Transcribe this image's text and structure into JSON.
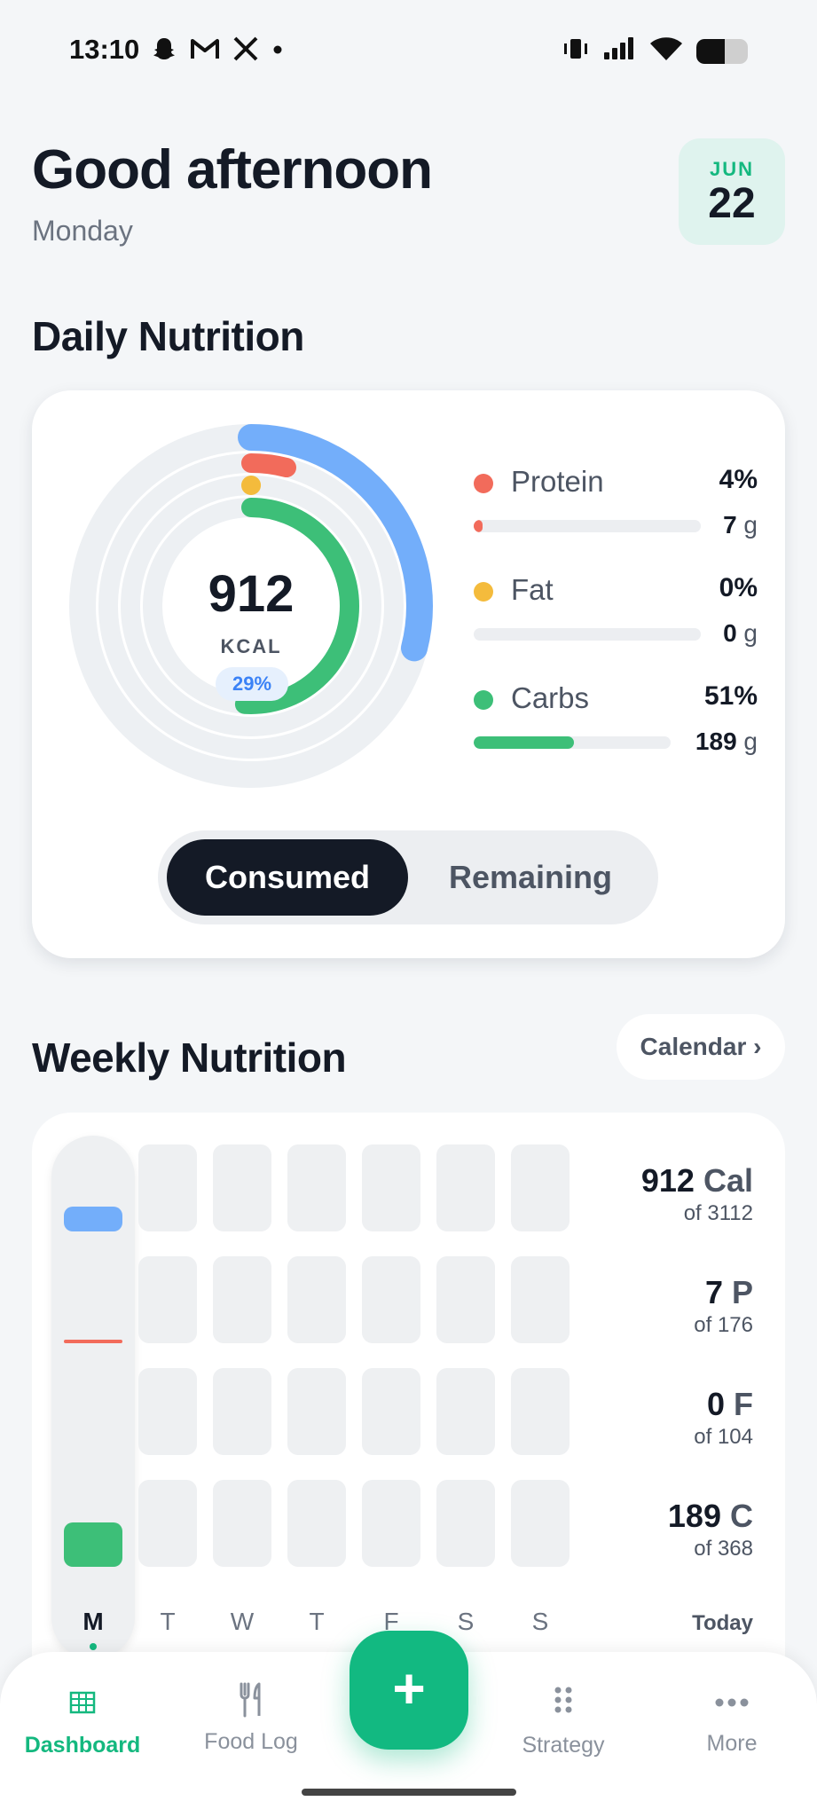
{
  "status_bar": {
    "time": "13:10",
    "notification_icons": [
      "snapchat-icon",
      "gmail-icon",
      "x-icon",
      "dot-icon"
    ],
    "system_icons": [
      "vibrate-icon",
      "signal-icon",
      "wifi-icon",
      "battery-icon"
    ],
    "battery_level": 0.55
  },
  "header": {
    "greeting": "Good afternoon",
    "weekday": "Monday",
    "date_month": "JUN",
    "date_day": "22"
  },
  "daily": {
    "title": "Daily Nutrition",
    "kcal": "912",
    "kcal_label": "KCAL",
    "kcal_percent": "29%",
    "kcal_progress": 0.29,
    "macros": [
      {
        "name": "Protein",
        "percent": "4%",
        "grams": "7",
        "unit": "g",
        "progress": 0.04,
        "color": "#f26b5b"
      },
      {
        "name": "Fat",
        "percent": "0%",
        "grams": "0",
        "unit": "g",
        "progress": 0.0,
        "color": "#f4bb3c"
      },
      {
        "name": "Carbs",
        "percent": "51%",
        "grams": "189",
        "unit": "g",
        "progress": 0.51,
        "color": "#3dbf78"
      }
    ],
    "calorie_color": "#73aefa",
    "toggle": {
      "consumed": "Consumed",
      "remaining": "Remaining",
      "selected": "Consumed"
    }
  },
  "weekly": {
    "title": "Weekly Nutrition",
    "calendar_button": "Calendar ›",
    "days": [
      "M",
      "T",
      "W",
      "T",
      "F",
      "S",
      "S"
    ],
    "active_day": 0,
    "today_label": "Today",
    "stats": [
      {
        "value": "912",
        "unit": "Cal",
        "of": "of 3112"
      },
      {
        "value": "7",
        "unit": "P",
        "of": "of 176"
      },
      {
        "value": "0",
        "unit": "F",
        "of": "of 104"
      },
      {
        "value": "189",
        "unit": "C",
        "of": "of 368"
      }
    ]
  },
  "nav": {
    "items": [
      {
        "label": "Dashboard",
        "icon": "grid-icon",
        "active": true
      },
      {
        "label": "Food Log",
        "icon": "fork-knife-icon",
        "active": false
      },
      {
        "label": "Strategy",
        "icon": "dots-grid-icon",
        "active": false
      },
      {
        "label": "More",
        "icon": "more-icon",
        "active": false
      }
    ],
    "fab": "+"
  }
}
